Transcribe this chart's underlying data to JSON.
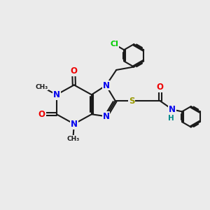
{
  "bg_color": "#ebebeb",
  "bond_color": "#1a1a1a",
  "bond_width": 1.5,
  "dbo": 0.055,
  "atom_colors": {
    "N": "#0000ee",
    "O": "#ee0000",
    "S": "#999900",
    "Cl": "#00cc00",
    "H": "#008888",
    "C": "#1a1a1a"
  },
  "fs": 8.5
}
